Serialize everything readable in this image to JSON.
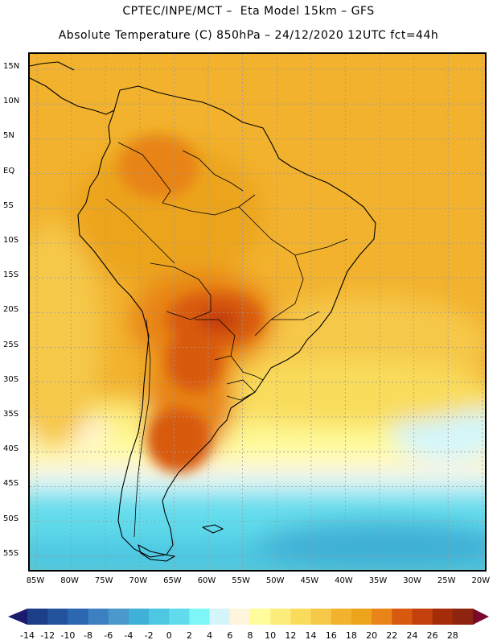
{
  "header": {
    "title_line1": "CPTEC/INPE/MCT –  Eta Model 15km – GFS",
    "title_line2": "Absolute Temperature (C) 850hPa – 24/12/2020 12UTC fct=44h"
  },
  "map": {
    "lat_labels": [
      "15N",
      "10N",
      "5N",
      "EQ",
      "5S",
      "10S",
      "15S",
      "20S",
      "25S",
      "30S",
      "35S",
      "40S",
      "45S",
      "50S",
      "55S"
    ],
    "lon_labels": [
      "85W",
      "80W",
      "75W",
      "70W",
      "65W",
      "60W",
      "55W",
      "50W",
      "45W",
      "40W",
      "35W",
      "30W",
      "25W",
      "20W"
    ]
  },
  "colorbar": {
    "labels": [
      "-14",
      "-12",
      "-10",
      "-8",
      "-6",
      "-4",
      "-2",
      "0",
      "2",
      "4",
      "6",
      "8",
      "10",
      "12",
      "14",
      "16",
      "18",
      "20",
      "22",
      "24",
      "26",
      "28"
    ],
    "colors": [
      "#1c3f8a",
      "#24539e",
      "#2c67b2",
      "#3c80c2",
      "#4a98cc",
      "#3fb0d6",
      "#4ec8e2",
      "#62dcec",
      "#7cf6f6",
      "#d4f6fa",
      "#fff4dc",
      "#fffc9c",
      "#fcec7c",
      "#f9dc5c",
      "#f6c84a",
      "#f2b22e",
      "#eca41c",
      "#e88418",
      "#d85a10",
      "#c4400c",
      "#a42c08",
      "#8c2410"
    ],
    "end_low_color": "#1a1a6e",
    "end_high_color": "#7a0a2a"
  }
}
